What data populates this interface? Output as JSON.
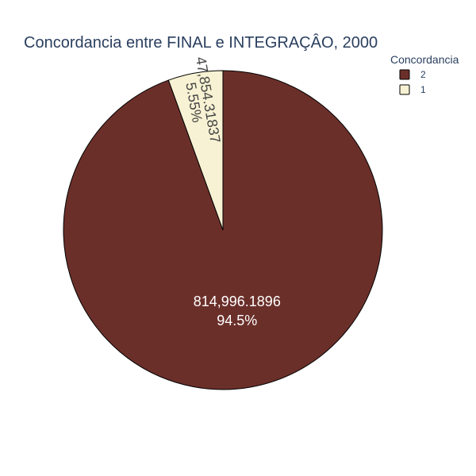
{
  "chart_data": {
    "type": "pie",
    "title": "Concordancia entre FINAL e INTEGRAÇÂO, 2000",
    "legend": {
      "title": "Concordancia",
      "placement": "top-right"
    },
    "slices": [
      {
        "label": "2",
        "value": 814996.1896,
        "value_text": "814,996.1896",
        "percent_text": "94.5%",
        "color": "#6b2f2a"
      },
      {
        "label": "1",
        "value": 47854.31837,
        "value_text": "47,854.31837",
        "percent_text": "5.55%",
        "color": "#f7f2d3"
      }
    ]
  }
}
